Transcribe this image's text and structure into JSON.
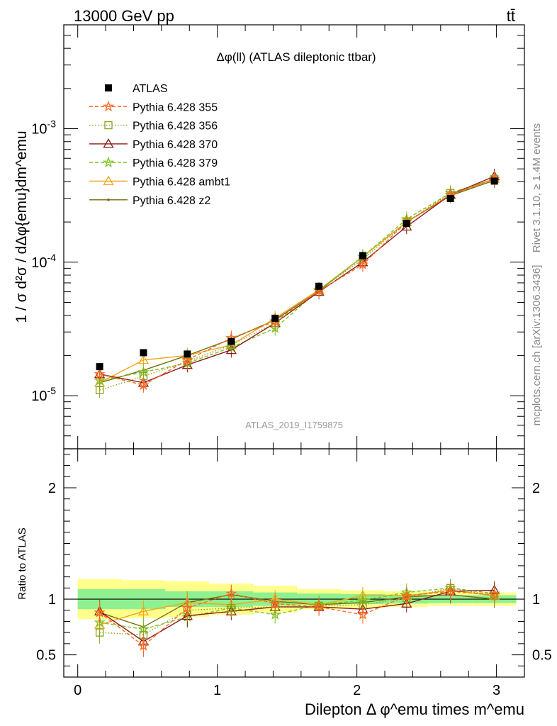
{
  "header": {
    "left": "13000 GeV pp",
    "right": "tt̄"
  },
  "side": {
    "rivet": "Rivet 3.1.10, ≥ 1.4M events",
    "mcplots": "mcplots.cern.ch [arXiv:1306.3436]"
  },
  "chart_data": [
    {
      "type": "line",
      "title": "Δφ(ll) (ATLAS dileptonic ttbar)",
      "ylabel": "1 / σ d²σ / dΔφ{emu}dm^emu",
      "yscale": "log",
      "ylim": [
        4e-06,
        0.006
      ],
      "xlim": [
        -0.1,
        3.2
      ],
      "watermark": "ATLAS_2019_I1759875",
      "y_tick_labels": [
        "10^-5",
        "10^-4",
        "10^-3"
      ],
      "x": [
        0.157,
        0.471,
        0.785,
        1.1,
        1.414,
        1.728,
        2.042,
        2.356,
        2.67,
        2.985
      ],
      "series": [
        {
          "name": "ATLAS",
          "color": "#000000",
          "style": "data",
          "values": [
            1.65e-05,
            2.1e-05,
            2.05e-05,
            2.55e-05,
            3.8e-05,
            6.6e-05,
            0.000112,
            0.000195,
            0.0003,
            0.000405
          ]
        },
        {
          "name": "Pythia 6.428 355",
          "color": "#ff6a1f",
          "style": "star-dashed",
          "values": [
            1.45e-05,
            1.2e-05,
            1.85e-05,
            2.7e-05,
            3.6e-05,
            6.1e-05,
            9.6e-05,
            0.0002,
            0.00032,
            0.00042
          ]
        },
        {
          "name": "Pythia 6.428 356",
          "color": "#8ca21e",
          "style": "opensquare-dotted",
          "values": [
            1.1e-05,
            1.4e-05,
            1.8e-05,
            2.4e-05,
            3.5e-05,
            6.2e-05,
            0.000105,
            0.0002,
            0.00033,
            0.00042
          ]
        },
        {
          "name": "Pythia 6.428 370",
          "color": "#8b1a1a",
          "style": "opentriangle-solid",
          "values": [
            1.45e-05,
            1.25e-05,
            1.7e-05,
            2.2e-05,
            3.5e-05,
            6e-05,
            0.0001,
            0.000185,
            0.00032,
            0.00044
          ]
        },
        {
          "name": "Pythia 6.428 379",
          "color": "#7cc41e",
          "style": "star-dashed",
          "values": [
            1.3e-05,
            1.5e-05,
            1.75e-05,
            2.3e-05,
            3.2e-05,
            6.2e-05,
            0.00011,
            0.00021,
            0.00033,
            0.00042
          ]
        },
        {
          "name": "Pythia 6.428 ambt1",
          "color": "#f2a618",
          "style": "opentriangle-solid",
          "values": [
            1.25e-05,
            1.85e-05,
            2e-05,
            2.4e-05,
            3.8e-05,
            6.2e-05,
            0.00011,
            0.0002,
            0.00032,
            0.00042
          ]
        },
        {
          "name": "Pythia 6.428 z2",
          "color": "#6e6e0a",
          "style": "dot-solid",
          "values": [
            1.25e-05,
            1.55e-05,
            2e-05,
            2.65e-05,
            3.7e-05,
            6.1e-05,
            0.00011,
            0.0002,
            0.000315,
            0.00041
          ]
        }
      ]
    },
    {
      "type": "line",
      "ylabel": "Ratio to ATLAS",
      "xlabel": "Dilepton Δ φ^emu times m^emu",
      "ylim": [
        0.3,
        2.35
      ],
      "xlim": [
        -0.1,
        3.2
      ],
      "x_tick_labels": [
        "0",
        "1",
        "2",
        "3"
      ],
      "y_tick_labels": [
        "0.5",
        "1",
        "2"
      ],
      "band_inner": [
        0.09,
        0.09,
        0.07,
        0.07,
        0.06,
        0.05,
        0.045,
        0.04,
        0.035,
        0.035
      ],
      "band_outer": [
        0.18,
        0.17,
        0.16,
        0.14,
        0.12,
        0.09,
        0.08,
        0.07,
        0.06,
        0.06
      ],
      "series": [
        {
          "name": "Pythia 6.428 355",
          "values": [
            0.88,
            0.58,
            0.92,
            1.05,
            0.96,
            0.93,
            0.86,
            1.03,
            1.07,
            1.04
          ]
        },
        {
          "name": "Pythia 6.428 356",
          "values": [
            0.7,
            0.68,
            0.9,
            0.92,
            0.93,
            0.94,
            0.95,
            1.01,
            1.1,
            1.03
          ]
        },
        {
          "name": "Pythia 6.428 370",
          "values": [
            0.89,
            0.62,
            0.85,
            0.89,
            0.93,
            0.93,
            0.91,
            0.96,
            1.07,
            1.08
          ]
        },
        {
          "name": "Pythia 6.428 379",
          "values": [
            0.79,
            0.73,
            0.84,
            0.92,
            0.86,
            0.95,
            0.99,
            1.06,
            1.1,
            1.05
          ]
        },
        {
          "name": "Pythia 6.428 ambt1",
          "values": [
            0.77,
            0.89,
            0.97,
            0.95,
            1.0,
            0.95,
            1.03,
            1.03,
            1.08,
            1.03
          ]
        },
        {
          "name": "Pythia 6.428 z2",
          "values": [
            0.88,
            0.75,
            0.97,
            1.04,
            0.98,
            0.95,
            0.97,
            1.02,
            1.04,
            1.0
          ]
        }
      ]
    }
  ]
}
